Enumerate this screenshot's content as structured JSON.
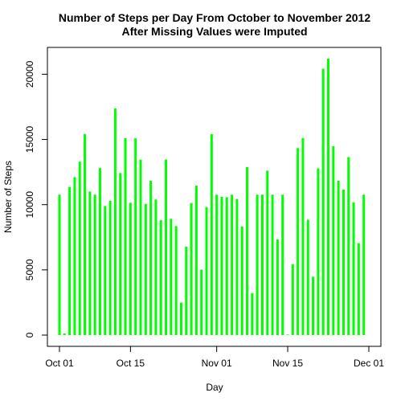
{
  "chart_data": {
    "type": "bar",
    "title_lines": [
      "Number of Steps per Day From October to November 2012",
      "After Missing Values were Imputed"
    ],
    "xlabel": "Day",
    "ylabel": "Number of Steps",
    "x_start_date": "2012-10-01",
    "x_end_date": "2012-12-01",
    "x_ticks": [
      {
        "label": "Oct 01",
        "date": "2012-10-01"
      },
      {
        "label": "Oct 15",
        "date": "2012-10-15"
      },
      {
        "label": "Nov 01",
        "date": "2012-11-01"
      },
      {
        "label": "Nov 15",
        "date": "2012-11-15"
      },
      {
        "label": "Dec 01",
        "date": "2012-12-01"
      }
    ],
    "y_ticks": [
      0,
      5000,
      10000,
      15000,
      20000
    ],
    "ylim": [
      0,
      21194
    ],
    "bar_color": "#00ff00",
    "values": [
      10766,
      126,
      11352,
      12116,
      13294,
      15420,
      11015,
      10766,
      12811,
      9900,
      10304,
      17382,
      12426,
      15098,
      10139,
      15084,
      13452,
      10056,
      11829,
      10395,
      8821,
      13460,
      8918,
      8355,
      2492,
      6778,
      10119,
      11458,
      5018,
      9819,
      15414,
      10766,
      10600,
      10571,
      10766,
      10439,
      8334,
      12883,
      3219,
      10766,
      10766,
      12608,
      10765,
      7336,
      10766,
      41,
      5441,
      14339,
      15110,
      8841,
      4472,
      12787,
      20427,
      21194,
      14478,
      11834,
      11162,
      13646,
      10183,
      7047,
      10766
    ]
  }
}
